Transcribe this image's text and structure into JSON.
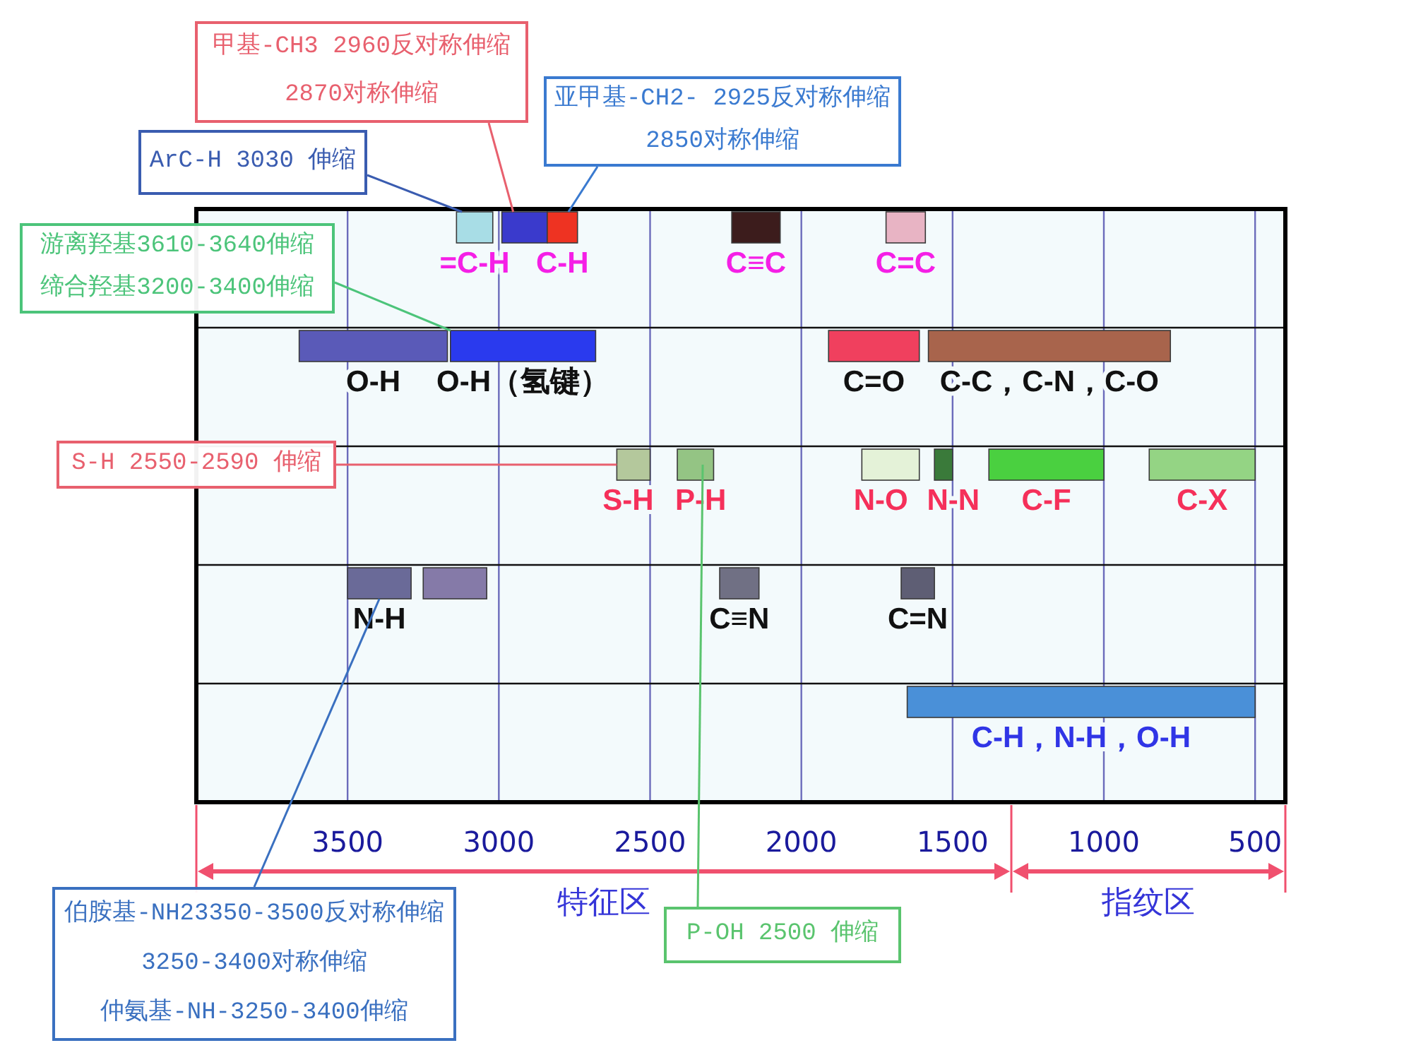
{
  "chart_data": {
    "type": "bar",
    "orientation": "horizontal",
    "categories": [
      null,
      null,
      null,
      null,
      null
    ],
    "series": [
      {
        "values": [
          120,
          490,
          110,
          210,
          1150
        ],
        "base": [
          3020,
          3170,
          2500,
          3290,
          500
        ],
        "colors": [
          "#a8dde6",
          "#5a5ab8",
          "#b4c89c",
          "#6a6a98",
          "#4a90d8"
        ],
        "value_labels": [
          "=C-H",
          "O-H",
          "S-H",
          "N-H",
          "C-H，N-H，O-H"
        ]
      },
      {
        "values": [
          150,
          480,
          120,
          210,
          null
        ],
        "base": [
          2840,
          2680,
          2290,
          3040,
          null
        ],
        "colors": [
          "#3a3acc",
          "#2a3aee",
          "#94c484",
          "#857aa8",
          null
        ],
        "value_labels": [
          null,
          "O-H（氢键）",
          "P-H",
          null,
          null
        ]
      },
      {
        "values": [
          100,
          300,
          190,
          130,
          null
        ],
        "base": [
          2740,
          1610,
          1610,
          2140,
          null
        ],
        "colors": [
          "#ee3322",
          "#f0405e",
          "#e4f2d8",
          "#707084",
          null
        ],
        "value_labels": [
          "C-H",
          "C=O",
          "N-O",
          "C≡N",
          null
        ]
      },
      {
        "values": [
          160,
          800,
          60,
          110,
          null
        ],
        "base": [
          2070,
          780,
          1500,
          1560,
          null
        ],
        "colors": [
          "#3c1c1c",
          "#a8644c",
          "#3a7a3a",
          "#5e5e74",
          null
        ],
        "value_labels": [
          "C≡C",
          "C-C，C-N，C-O",
          "N-N",
          "C=N",
          null
        ]
      },
      {
        "values": [
          130,
          null,
          380,
          null,
          null
        ],
        "base": [
          1590,
          null,
          1000,
          null,
          null
        ],
        "colors": [
          "#e8b4c4",
          null,
          "#4ad040",
          null,
          null
        ],
        "value_labels": [
          "C=C",
          null,
          "C-F",
          null,
          null
        ]
      },
      {
        "values": [
          null,
          null,
          350,
          null,
          null
        ],
        "base": [
          null,
          null,
          500,
          null,
          null
        ],
        "colors": [
          null,
          null,
          "#94d484",
          null,
          null
        ],
        "value_labels": [
          null,
          null,
          "C-X",
          null,
          null
        ]
      }
    ],
    "xlim": [
      4000,
      400
    ],
    "xticks": [
      3500,
      3000,
      2500,
      2000,
      1500,
      1000,
      500
    ],
    "grid": true,
    "tick_labels": "x",
    "annotations": [
      "甲基-CH3 2960反对称伸缩\n2870对称伸缩",
      "亚甲基-CH2- 2925反对称伸缩\n2850对称伸缩",
      "ArC-H 3030 伸缩",
      "游离羟基3610-3640伸缩",
      "缔合羟基3200-3400伸缩",
      "S-H 2550-2590 伸缩",
      "伯胺基-NH23350-3500反对称伸缩\n3250-3400对称伸缩",
      "仲氨基-NH-3250-3400伸缩",
      "P-OH 2500 伸缩",
      "特征区",
      "指纹区"
    ]
  }
}
